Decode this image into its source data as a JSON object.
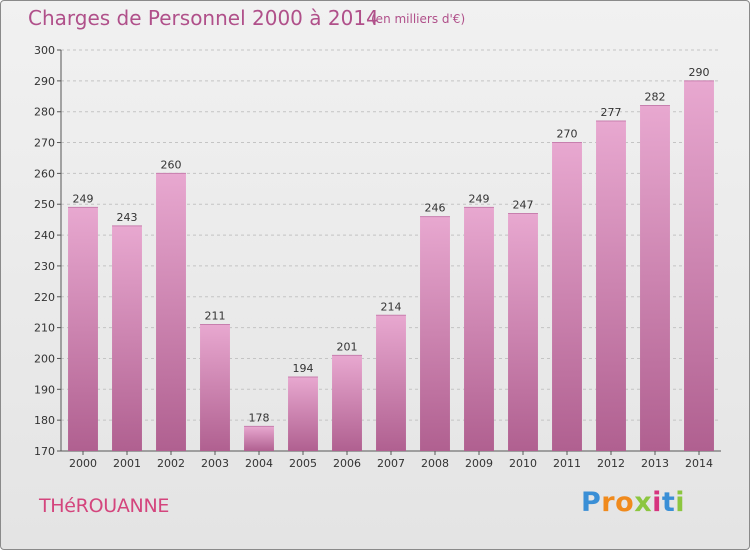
{
  "header": {
    "title": "Charges de Personnel 2000 à 2014",
    "subtitle": "(en milliers d'€)"
  },
  "footer": {
    "place": "THéROUANNE",
    "brand_letters": [
      "P",
      "r",
      "o",
      "x",
      "i",
      "t",
      "i"
    ],
    "brand_colors": [
      "#3a8fd6",
      "#f08a1c",
      "#f08a1c",
      "#8cc63f",
      "#d6337e",
      "#3a8fd6",
      "#8cc63f"
    ]
  },
  "chart_data": {
    "type": "bar",
    "title": "Charges de Personnel 2000 à 2014",
    "subtitle": "(en milliers d'€)",
    "categories": [
      "2000",
      "2001",
      "2002",
      "2003",
      "2004",
      "2005",
      "2006",
      "2007",
      "2008",
      "2009",
      "2010",
      "2011",
      "2012",
      "2013",
      "2014"
    ],
    "values": [
      249,
      243,
      260,
      211,
      178,
      194,
      201,
      214,
      246,
      249,
      247,
      270,
      277,
      282,
      290
    ],
    "ylim": [
      170,
      300
    ],
    "yticks": [
      170,
      180,
      190,
      200,
      210,
      220,
      230,
      240,
      250,
      260,
      270,
      280,
      290,
      300
    ],
    "grid": true,
    "bar_color_top": "#e8a8d0",
    "bar_color_bottom": "#b06090"
  }
}
